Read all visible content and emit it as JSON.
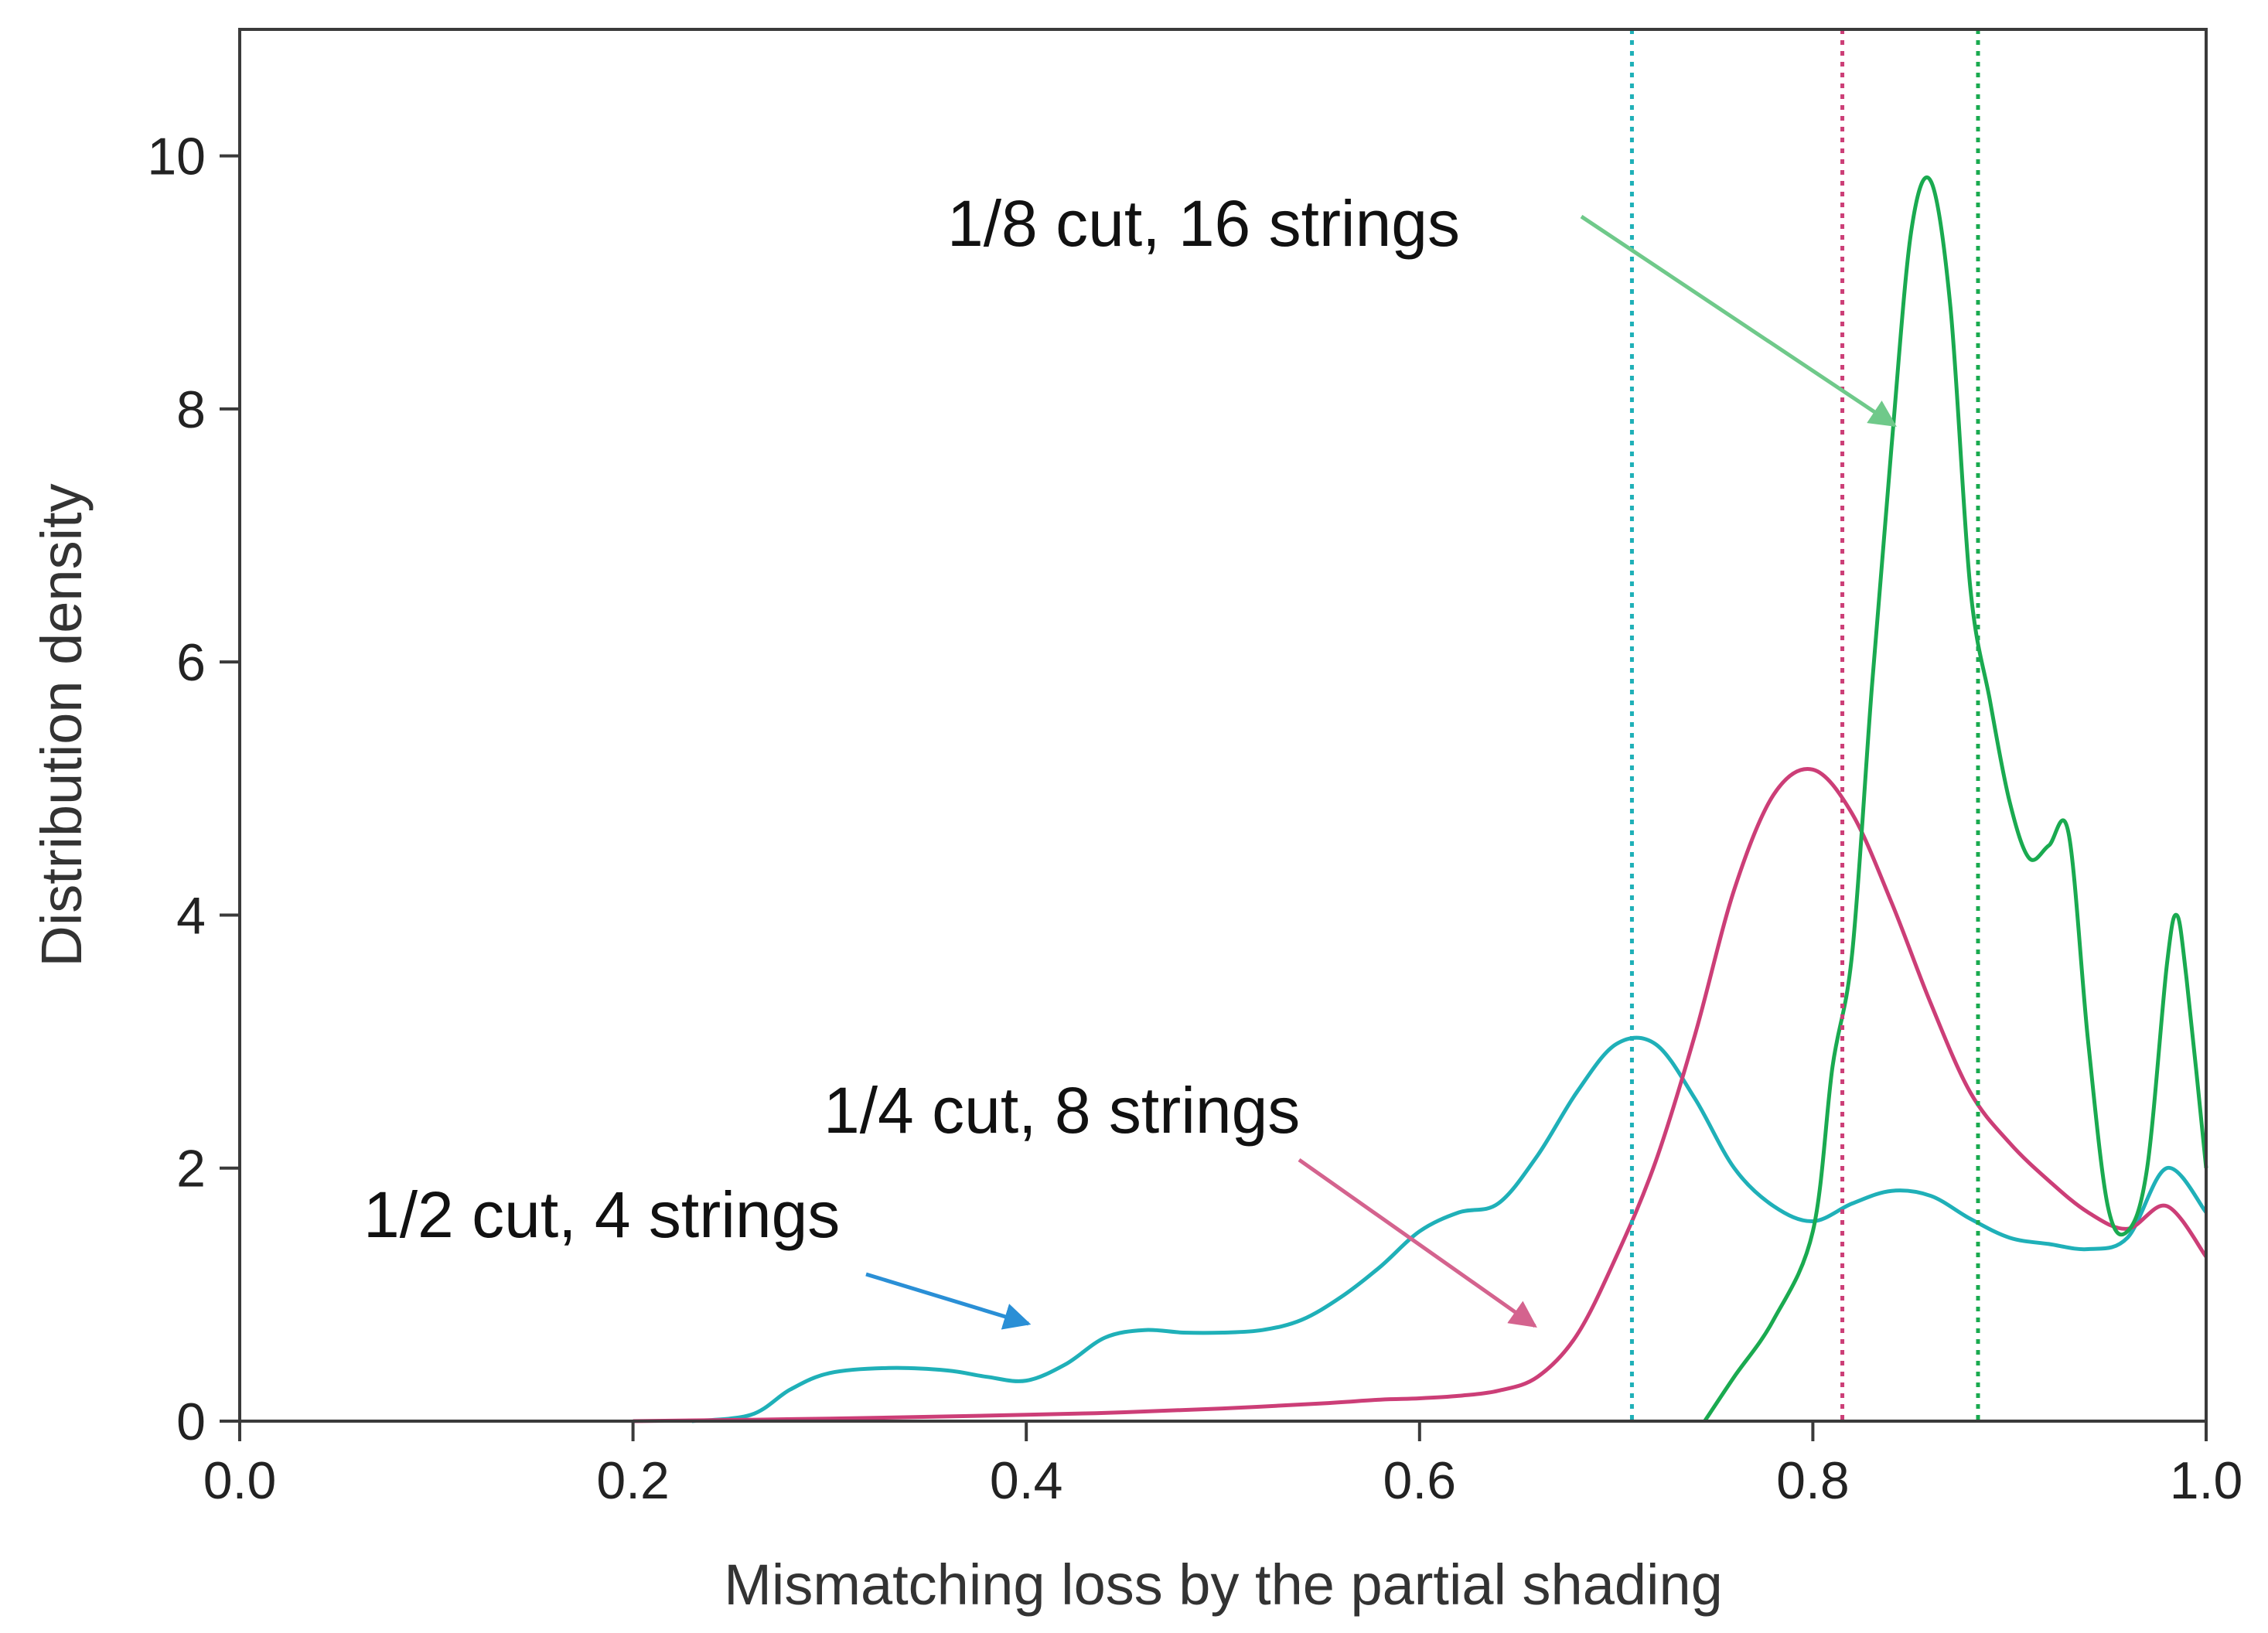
{
  "chart_data": {
    "type": "line",
    "title": "",
    "xlabel": "Mismatching loss by the partial shading",
    "ylabel": "Distribution density",
    "xlim": [
      0.0,
      1.0
    ],
    "ylim": [
      0,
      11
    ],
    "x_ticks": [
      0.0,
      0.2,
      0.4,
      0.6,
      0.8,
      1.0
    ],
    "x_tick_labels": [
      "0.0",
      "0.2",
      "0.4",
      "0.6",
      "0.8",
      "1.0"
    ],
    "y_ticks": [
      0,
      2,
      4,
      6,
      8,
      10
    ],
    "y_tick_labels": [
      "0",
      "2",
      "4",
      "6",
      "8",
      "10"
    ],
    "grid": false,
    "series": [
      {
        "name": "1/2 cut, 4 strings",
        "color": "#1fb0b8",
        "mean": 0.708,
        "points": [
          [
            0.23,
            0.0
          ],
          [
            0.26,
            0.05
          ],
          [
            0.28,
            0.25
          ],
          [
            0.3,
            0.38
          ],
          [
            0.33,
            0.42
          ],
          [
            0.36,
            0.4
          ],
          [
            0.38,
            0.35
          ],
          [
            0.4,
            0.32
          ],
          [
            0.42,
            0.45
          ],
          [
            0.44,
            0.66
          ],
          [
            0.46,
            0.72
          ],
          [
            0.48,
            0.7
          ],
          [
            0.5,
            0.7
          ],
          [
            0.52,
            0.72
          ],
          [
            0.54,
            0.8
          ],
          [
            0.56,
            0.98
          ],
          [
            0.58,
            1.22
          ],
          [
            0.6,
            1.5
          ],
          [
            0.62,
            1.65
          ],
          [
            0.64,
            1.72
          ],
          [
            0.66,
            2.1
          ],
          [
            0.68,
            2.6
          ],
          [
            0.7,
            2.98
          ],
          [
            0.72,
            2.98
          ],
          [
            0.74,
            2.55
          ],
          [
            0.76,
            2.0
          ],
          [
            0.78,
            1.7
          ],
          [
            0.8,
            1.58
          ],
          [
            0.82,
            1.72
          ],
          [
            0.84,
            1.82
          ],
          [
            0.86,
            1.78
          ],
          [
            0.88,
            1.6
          ],
          [
            0.9,
            1.45
          ],
          [
            0.92,
            1.4
          ],
          [
            0.94,
            1.36
          ],
          [
            0.96,
            1.45
          ],
          [
            0.98,
            2.0
          ],
          [
            1.0,
            1.65
          ]
        ]
      },
      {
        "name": "1/4 cut, 8 strings",
        "color": "#cc3e77",
        "mean": 0.815,
        "points": [
          [
            0.2,
            0.0
          ],
          [
            0.3,
            0.02
          ],
          [
            0.4,
            0.05
          ],
          [
            0.45,
            0.07
          ],
          [
            0.5,
            0.1
          ],
          [
            0.55,
            0.14
          ],
          [
            0.58,
            0.17
          ],
          [
            0.6,
            0.18
          ],
          [
            0.62,
            0.2
          ],
          [
            0.64,
            0.24
          ],
          [
            0.66,
            0.35
          ],
          [
            0.68,
            0.68
          ],
          [
            0.7,
            1.3
          ],
          [
            0.72,
            2.05
          ],
          [
            0.74,
            3.05
          ],
          [
            0.76,
            4.2
          ],
          [
            0.78,
            4.95
          ],
          [
            0.8,
            5.15
          ],
          [
            0.82,
            4.8
          ],
          [
            0.84,
            4.1
          ],
          [
            0.86,
            3.3
          ],
          [
            0.88,
            2.6
          ],
          [
            0.9,
            2.2
          ],
          [
            0.92,
            1.9
          ],
          [
            0.94,
            1.65
          ],
          [
            0.96,
            1.52
          ],
          [
            0.98,
            1.7
          ],
          [
            1.0,
            1.3
          ]
        ]
      },
      {
        "name": "1/8 cut, 16 strings",
        "color": "#1aaa50",
        "mean": 0.884,
        "points": [
          [
            0.745,
            0.0
          ],
          [
            0.76,
            0.35
          ],
          [
            0.78,
            0.8
          ],
          [
            0.8,
            1.5
          ],
          [
            0.81,
            2.8
          ],
          [
            0.82,
            3.7
          ],
          [
            0.83,
            5.8
          ],
          [
            0.84,
            7.7
          ],
          [
            0.85,
            9.4
          ],
          [
            0.86,
            9.8
          ],
          [
            0.87,
            8.8
          ],
          [
            0.88,
            6.6
          ],
          [
            0.89,
            5.7
          ],
          [
            0.9,
            4.9
          ],
          [
            0.91,
            4.45
          ],
          [
            0.92,
            4.55
          ],
          [
            0.93,
            4.65
          ],
          [
            0.94,
            3.0
          ],
          [
            0.95,
            1.7
          ],
          [
            0.96,
            1.5
          ],
          [
            0.97,
            2.0
          ],
          [
            0.98,
            3.6
          ],
          [
            0.985,
            4.0
          ],
          [
            0.99,
            3.5
          ],
          [
            1.0,
            2.0
          ]
        ]
      }
    ],
    "annotations": [
      {
        "text": "1/8 cut, 16 strings",
        "series": "1/8 cut, 16 strings"
      },
      {
        "text": "1/4 cut, 8 strings",
        "series": "1/4 cut, 8 strings"
      },
      {
        "text": "1/2 cut, 4 strings",
        "series": "1/2 cut, 4 strings"
      }
    ]
  }
}
